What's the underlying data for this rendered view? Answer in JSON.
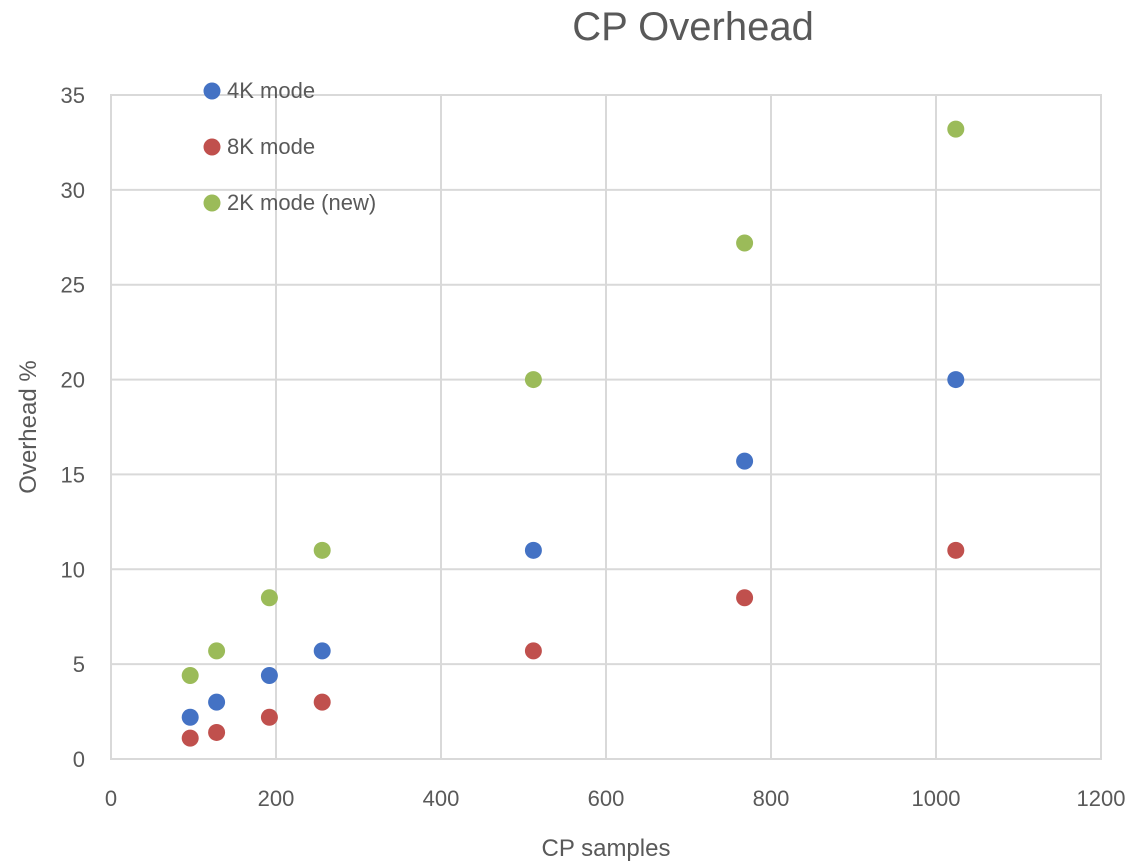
{
  "chart_data": {
    "type": "scatter",
    "title": "CP Overhead",
    "xlabel": "CP samples",
    "ylabel": "Overhead %",
    "xlim": [
      0,
      1200
    ],
    "ylim": [
      0,
      35
    ],
    "xticks": [
      0,
      200,
      400,
      600,
      800,
      1000,
      1200
    ],
    "yticks": [
      0,
      5,
      10,
      15,
      20,
      25,
      30,
      35
    ],
    "xtick_labels": [
      "0",
      "200",
      "400",
      "600",
      "800",
      "1000",
      "1200"
    ],
    "ytick_labels": [
      "0",
      "5",
      "10",
      "15",
      "20",
      "25",
      "30",
      "35"
    ],
    "grid": true,
    "legend_position": "top-left",
    "series": [
      {
        "name": "4K mode",
        "color": "#4472c4",
        "points": [
          [
            96,
            2.2
          ],
          [
            128,
            3.0
          ],
          [
            192,
            4.4
          ],
          [
            256,
            5.7
          ],
          [
            512,
            11.0
          ],
          [
            768,
            15.7
          ],
          [
            1024,
            20.0
          ]
        ]
      },
      {
        "name": "8K mode",
        "color": "#c0504d",
        "points": [
          [
            96,
            1.1
          ],
          [
            128,
            1.4
          ],
          [
            192,
            2.2
          ],
          [
            256,
            3.0
          ],
          [
            512,
            5.7
          ],
          [
            768,
            8.5
          ],
          [
            1024,
            11.0
          ]
        ]
      },
      {
        "name": "2K mode (new)",
        "color": "#9bbb59",
        "points": [
          [
            96,
            4.4
          ],
          [
            128,
            5.7
          ],
          [
            192,
            8.5
          ],
          [
            256,
            11.0
          ],
          [
            512,
            20.0
          ],
          [
            768,
            27.2
          ],
          [
            1024,
            33.2
          ]
        ]
      }
    ]
  }
}
